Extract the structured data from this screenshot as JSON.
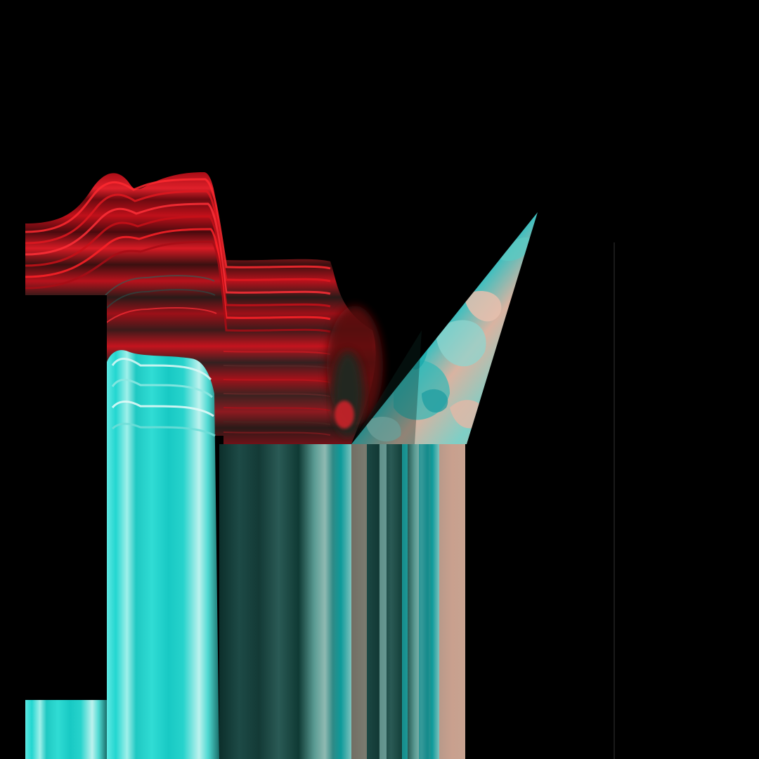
{
  "artwork": {
    "background_color": "#000000",
    "palette": {
      "red": "#c0101a",
      "dark_red": "#5a0a10",
      "cyan": "#22d6d0",
      "pale_cyan": "#bdf2ee",
      "dark_teal": "#0f3a34",
      "peach": "#c9a08e",
      "aqua": "#7fd6cf"
    },
    "layers": [
      "red-wave-streaks",
      "cyan-vertical-streaks",
      "dark-teal-vertical-streaks",
      "peach-marbled-triangle",
      "black-occluding-blocks",
      "thin-vertical-line"
    ]
  }
}
